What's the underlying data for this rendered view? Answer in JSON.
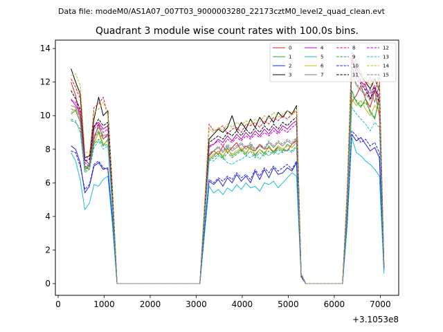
{
  "figure": {
    "suptitle": "Data file: modeM0/AS1A07_007T03_9000003280_22173cztM0_level2_quad_clean.evt",
    "axes_title": "Quadrant 3 module wise count rates with 100.0s bins.",
    "x_offset_label": "+3.1053e8"
  },
  "chart_data": {
    "type": "line",
    "title": "Quadrant 3 module wise count rates with 100.0s bins.",
    "xlabel": "",
    "ylabel": "",
    "x_offset": "+3.1053e8",
    "xlim": [
      -60,
      7400
    ],
    "ylim": [
      -0.7,
      14.5
    ],
    "xticks": [
      0,
      1000,
      2000,
      3000,
      4000,
      5000,
      6000,
      7000
    ],
    "yticks": [
      0,
      2,
      4,
      6,
      8,
      10,
      12,
      14
    ],
    "xtick_labels": [
      "0",
      "1000",
      "2000",
      "3000",
      "4000",
      "5000",
      "6000",
      "7000"
    ],
    "ytick_labels": [
      "0",
      "2",
      "4",
      "6",
      "8",
      "10",
      "12",
      "14"
    ],
    "grid": false,
    "legend_position": "top-right",
    "legend_columns": 4,
    "x": [
      280,
      380,
      480,
      580,
      680,
      780,
      880,
      980,
      1080,
      1180,
      1280,
      1380,
      1480,
      1580,
      1680,
      1780,
      1880,
      1980,
      2080,
      2180,
      2280,
      2380,
      2480,
      2580,
      2680,
      2780,
      2880,
      2980,
      3080,
      3180,
      3280,
      3380,
      3480,
      3580,
      3680,
      3780,
      3880,
      3980,
      4080,
      4180,
      4280,
      4380,
      4480,
      4580,
      4680,
      4780,
      4880,
      4980,
      5080,
      5180,
      5280,
      5380,
      5480,
      5580,
      5680,
      5780,
      5880,
      5980,
      6080,
      6180,
      6280,
      6380,
      6480,
      6580,
      6680,
      6780,
      6880,
      6980,
      7080
    ],
    "series": [
      {
        "name": "0",
        "color": "#e31a1c",
        "dash": "solid",
        "values": [
          12.0,
          11.2,
          9.8,
          7.0,
          6.8,
          8.6,
          9.5,
          8.6,
          8.9,
          5.0,
          0,
          0,
          0,
          0,
          0,
          0,
          0,
          0,
          0,
          0,
          0,
          0,
          0,
          0,
          0,
          0,
          0,
          0,
          0,
          4.0,
          7.6,
          7.9,
          7.7,
          8.2,
          7.8,
          8.1,
          8.4,
          7.9,
          8.2,
          8.0,
          7.9,
          8.3,
          8.0,
          8.1,
          7.8,
          8.2,
          8.0,
          7.9,
          8.3,
          8.5,
          0.5,
          0,
          0,
          0,
          0,
          0,
          0,
          0,
          0,
          0,
          4.5,
          10.8,
          11.2,
          11.8,
          11.0,
          10.5,
          11.5,
          10.0,
          0.9
        ]
      },
      {
        "name": "1",
        "color": "#2ca02c",
        "dash": "solid",
        "values": [
          10.1,
          10.3,
          9.6,
          6.8,
          7.0,
          8.4,
          9.0,
          8.2,
          8.6,
          4.8,
          0,
          0,
          0,
          0,
          0,
          0,
          0,
          0,
          0,
          0,
          0,
          0,
          0,
          0,
          0,
          0,
          0,
          0,
          0,
          3.9,
          7.4,
          7.6,
          7.9,
          7.5,
          8.1,
          7.6,
          7.8,
          8.0,
          7.7,
          8.2,
          7.6,
          8.0,
          7.7,
          8.2,
          7.8,
          8.1,
          7.9,
          8.3,
          8.1,
          8.4,
          0.5,
          0,
          0,
          0,
          0,
          0,
          0,
          0,
          0,
          0,
          4.3,
          11.5,
          10.8,
          10.5,
          11.0,
          10.2,
          9.8,
          11.2,
          0.9
        ]
      },
      {
        "name": "2",
        "color": "#1f1fe0",
        "dash": "solid",
        "values": [
          8.2,
          8.0,
          7.2,
          5.4,
          5.8,
          7.0,
          7.2,
          6.8,
          6.9,
          3.8,
          0,
          0,
          0,
          0,
          0,
          0,
          0,
          0,
          0,
          0,
          0,
          0,
          0,
          0,
          0,
          0,
          0,
          0,
          0,
          3.1,
          6.1,
          5.9,
          6.2,
          5.8,
          6.3,
          6.0,
          6.5,
          6.1,
          6.4,
          6.0,
          6.7,
          6.2,
          6.8,
          6.3,
          6.9,
          6.5,
          6.6,
          6.9,
          6.7,
          7.2,
          0.4,
          0,
          0,
          0,
          0,
          0,
          0,
          0,
          0,
          0,
          3.6,
          8.9,
          8.5,
          8.7,
          8.3,
          7.9,
          8.1,
          7.5,
          0.8
        ]
      },
      {
        "name": "3",
        "color": "#000000",
        "dash": "solid",
        "values": [
          12.8,
          12.0,
          11.3,
          7.5,
          7.6,
          9.8,
          11.1,
          10.0,
          10.3,
          5.6,
          0,
          0,
          0,
          0,
          0,
          0,
          0,
          0,
          0,
          0,
          0,
          0,
          0,
          0,
          0,
          0,
          0,
          0,
          0,
          4.4,
          8.6,
          8.9,
          9.2,
          9.0,
          9.3,
          10.0,
          9.1,
          9.6,
          9.2,
          9.8,
          9.3,
          9.9,
          9.5,
          10.0,
          9.6,
          10.2,
          9.9,
          10.3,
          10.1,
          10.6,
          0.6,
          0,
          0,
          0,
          0,
          0,
          0,
          0,
          0,
          0,
          5.3,
          13.2,
          12.8,
          12.4,
          12.0,
          11.6,
          12.2,
          11.5,
          1.1
        ]
      },
      {
        "name": "4",
        "color": "#c000c0",
        "dash": "solid",
        "values": [
          11.0,
          10.6,
          10.2,
          7.4,
          7.1,
          9.4,
          9.6,
          9.2,
          9.4,
          5.1,
          0,
          0,
          0,
          0,
          0,
          0,
          0,
          0,
          0,
          0,
          0,
          0,
          0,
          0,
          0,
          0,
          0,
          0,
          0,
          4.2,
          8.2,
          8.3,
          8.6,
          8.4,
          8.8,
          8.5,
          8.9,
          8.6,
          9.0,
          8.7,
          9.1,
          8.8,
          9.2,
          8.9,
          9.3,
          9.0,
          9.4,
          9.2,
          9.5,
          9.7,
          0.5,
          0,
          0,
          0,
          0,
          0,
          0,
          0,
          0,
          0,
          5.0,
          13.5,
          12.5,
          12.0,
          11.8,
          11.0,
          11.5,
          11.2,
          1.0
        ]
      },
      {
        "name": "5",
        "color": "#17becf",
        "dash": "solid",
        "values": [
          7.8,
          7.3,
          6.2,
          4.4,
          4.8,
          5.9,
          5.8,
          6.2,
          6.4,
          3.5,
          0,
          0,
          0,
          0,
          0,
          0,
          0,
          0,
          0,
          0,
          0,
          0,
          0,
          0,
          0,
          0,
          0,
          0,
          0,
          2.9,
          5.8,
          5.4,
          5.6,
          5.3,
          5.7,
          5.5,
          5.9,
          5.6,
          6.0,
          5.7,
          5.8,
          5.5,
          6.0,
          5.9,
          6.1,
          5.7,
          6.0,
          6.3,
          6.6,
          6.4,
          0.4,
          0,
          0,
          0,
          0,
          0,
          0,
          0,
          0,
          0,
          3.4,
          8.7,
          7.8,
          7.6,
          7.3,
          7.1,
          6.8,
          6.4,
          0.6
        ]
      },
      {
        "name": "6",
        "color": "#bcbd22",
        "dash": "solid",
        "values": [
          10.2,
          10.4,
          9.6,
          6.7,
          6.8,
          8.3,
          9.1,
          8.3,
          8.5,
          4.7,
          0,
          0,
          0,
          0,
          0,
          0,
          0,
          0,
          0,
          0,
          0,
          0,
          0,
          0,
          0,
          0,
          0,
          0,
          0,
          3.9,
          7.5,
          7.7,
          7.9,
          7.6,
          8.0,
          7.7,
          7.9,
          8.1,
          7.8,
          8.1,
          7.7,
          8.0,
          7.8,
          8.1,
          7.9,
          8.2,
          8.0,
          8.2,
          8.1,
          8.4,
          0.5,
          0,
          0,
          0,
          0,
          0,
          0,
          0,
          0,
          0,
          4.4,
          11.0,
          10.6,
          10.9,
          10.4,
          10.0,
          10.6,
          10.3,
          0.9
        ]
      },
      {
        "name": "7",
        "color": "#7f7f7f",
        "dash": "solid",
        "values": [
          10.6,
          10.5,
          9.9,
          6.9,
          7.1,
          8.8,
          9.3,
          8.8,
          8.9,
          4.9,
          0,
          0,
          0,
          0,
          0,
          0,
          0,
          0,
          0,
          0,
          0,
          0,
          0,
          0,
          0,
          0,
          0,
          0,
          0,
          4.0,
          7.7,
          7.9,
          8.1,
          7.8,
          8.2,
          7.9,
          8.1,
          8.3,
          8.0,
          8.3,
          7.9,
          8.2,
          8.0,
          8.4,
          8.1,
          8.4,
          8.2,
          8.5,
          8.3,
          8.6,
          0.5,
          0,
          0,
          0,
          0,
          0,
          0,
          0,
          0,
          0,
          4.6,
          12.6,
          11.8,
          11.5,
          11.2,
          11.6,
          10.8,
          11.9,
          1.0
        ]
      },
      {
        "name": "8",
        "color": "#e31a1c",
        "dash": "dashed",
        "values": [
          12.2,
          11.7,
          11.0,
          7.6,
          7.4,
          10.5,
          10.7,
          11.1,
          10.0,
          5.6,
          0,
          0,
          0,
          0,
          0,
          0,
          0,
          0,
          0,
          0,
          0,
          0,
          0,
          0,
          0,
          0,
          0,
          0,
          0,
          4.7,
          9.5,
          9.1,
          9.2,
          9.4,
          8.9,
          9.2,
          9.3,
          9.0,
          9.5,
          9.4,
          9.6,
          9.3,
          9.7,
          9.5,
          9.9,
          9.7,
          10.0,
          9.8,
          10.1,
          10.3,
          0.6,
          0,
          0,
          0,
          0,
          0,
          0,
          0,
          0,
          0,
          5.6,
          13.8,
          13.2,
          12.5,
          11.8,
          12.3,
          11.4,
          12.4,
          1.1
        ]
      },
      {
        "name": "9",
        "color": "#2ca02c",
        "dash": "dashed",
        "values": [
          9.7,
          9.6,
          9.2,
          6.8,
          6.9,
          8.3,
          8.6,
          8.2,
          8.3,
          4.6,
          0,
          0,
          0,
          0,
          0,
          0,
          0,
          0,
          0,
          0,
          0,
          0,
          0,
          0,
          0,
          0,
          0,
          0,
          0,
          3.8,
          7.3,
          7.5,
          7.7,
          7.4,
          7.8,
          7.5,
          7.7,
          7.9,
          7.6,
          7.9,
          7.5,
          7.8,
          7.6,
          7.9,
          7.7,
          8.0,
          7.8,
          8.0,
          7.9,
          8.2,
          0.5,
          0,
          0,
          0,
          0,
          0,
          0,
          0,
          0,
          0,
          4.3,
          11.2,
          10.9,
          10.6,
          10.8,
          10.3,
          9.9,
          10.9,
          0.9
        ]
      },
      {
        "name": "10",
        "color": "#1f1fe0",
        "dash": "dashed",
        "values": [
          7.9,
          7.8,
          7.0,
          5.6,
          5.9,
          7.1,
          7.3,
          6.9,
          6.8,
          3.9,
          0,
          0,
          0,
          0,
          0,
          0,
          0,
          0,
          0,
          0,
          0,
          0,
          0,
          0,
          0,
          0,
          0,
          0,
          0,
          3.2,
          6.2,
          6.0,
          6.3,
          6.1,
          6.4,
          6.2,
          6.6,
          6.3,
          6.5,
          6.2,
          6.8,
          6.4,
          6.9,
          6.6,
          7.0,
          6.7,
          6.9,
          7.1,
          6.8,
          7.3,
          0.4,
          0,
          0,
          0,
          0,
          0,
          0,
          0,
          0,
          0,
          3.7,
          9.1,
          8.8,
          8.4,
          8.6,
          8.2,
          8.4,
          7.8,
          0.8
        ]
      },
      {
        "name": "11",
        "color": "#000000",
        "dash": "dashed",
        "values": [
          11.5,
          11.0,
          10.4,
          7.3,
          7.4,
          9.3,
          9.8,
          9.4,
          9.6,
          5.3,
          0,
          0,
          0,
          0,
          0,
          0,
          0,
          0,
          0,
          0,
          0,
          0,
          0,
          0,
          0,
          0,
          0,
          0,
          0,
          4.3,
          8.4,
          8.6,
          8.8,
          8.6,
          9.0,
          8.8,
          9.1,
          8.8,
          9.2,
          8.9,
          9.3,
          9.0,
          9.4,
          9.1,
          9.5,
          9.2,
          9.6,
          9.4,
          9.7,
          9.9,
          0.5,
          0,
          0,
          0,
          0,
          0,
          0,
          0,
          0,
          0,
          5.1,
          12.9,
          12.2,
          11.9,
          11.5,
          11.0,
          11.7,
          10.8,
          1.0
        ]
      },
      {
        "name": "12",
        "color": "#c000c0",
        "dash": "dashed",
        "values": [
          10.9,
          10.8,
          10.3,
          7.2,
          7.0,
          9.2,
          9.5,
          9.0,
          9.2,
          5.0,
          0,
          0,
          0,
          0,
          0,
          0,
          0,
          0,
          0,
          0,
          0,
          0,
          0,
          0,
          0,
          0,
          0,
          0,
          0,
          4.1,
          8.1,
          8.3,
          8.5,
          8.2,
          8.6,
          8.4,
          8.7,
          8.5,
          8.8,
          8.6,
          8.9,
          8.7,
          9.0,
          8.8,
          9.1,
          8.9,
          9.2,
          9.0,
          9.3,
          9.5,
          0.5,
          0,
          0,
          0,
          0,
          0,
          0,
          0,
          0,
          0,
          4.9,
          13.3,
          12.6,
          12.1,
          11.6,
          11.3,
          11.8,
          11.0,
          1.0
        ]
      },
      {
        "name": "13",
        "color": "#17becf",
        "dash": "dashed",
        "values": [
          9.8,
          9.7,
          9.0,
          6.6,
          6.8,
          8.1,
          8.5,
          8.0,
          8.2,
          4.5,
          0,
          0,
          0,
          0,
          0,
          0,
          0,
          0,
          0,
          0,
          0,
          0,
          0,
          0,
          0,
          0,
          0,
          0,
          0,
          3.7,
          7.4,
          7.3,
          7.6,
          7.5,
          7.2,
          7.1,
          7.3,
          7.4,
          7.6,
          7.5,
          7.7,
          7.4,
          7.8,
          7.6,
          7.9,
          7.7,
          7.9,
          8.0,
          7.8,
          8.1,
          0.5,
          0,
          0,
          0,
          0,
          0,
          0,
          0,
          0,
          0,
          4.2,
          10.5,
          10.1,
          9.8,
          9.5,
          9.1,
          9.6,
          9.3,
          0.8
        ]
      },
      {
        "name": "14",
        "color": "#bcbd22",
        "dash": "dashed",
        "values": [
          12.4,
          12.5,
          11.8,
          7.9,
          7.7,
          10.2,
          10.4,
          10.8,
          10.1,
          5.7,
          0,
          0,
          0,
          0,
          0,
          0,
          0,
          0,
          0,
          0,
          0,
          0,
          0,
          0,
          0,
          0,
          0,
          0,
          0,
          4.6,
          9.2,
          9.0,
          9.3,
          9.1,
          9.5,
          9.3,
          9.6,
          9.4,
          9.7,
          9.5,
          9.8,
          9.6,
          10.0,
          9.8,
          10.2,
          9.9,
          10.1,
          10.3,
          10.0,
          10.5,
          0.6,
          0,
          0,
          0,
          0,
          0,
          0,
          0,
          0,
          0,
          5.4,
          13.6,
          13.0,
          12.6,
          12.2,
          11.8,
          12.1,
          11.6,
          1.1
        ]
      },
      {
        "name": "15",
        "color": "#7f7f7f",
        "dash": "dashed",
        "values": [
          10.4,
          10.3,
          9.7,
          6.9,
          7.0,
          8.7,
          9.1,
          8.6,
          8.8,
          4.8,
          0,
          0,
          0,
          0,
          0,
          0,
          0,
          0,
          0,
          0,
          0,
          0,
          0,
          0,
          0,
          0,
          0,
          0,
          0,
          4.0,
          7.8,
          7.9,
          8.2,
          7.9,
          8.3,
          8.0,
          8.2,
          8.4,
          8.1,
          8.4,
          8.0,
          8.3,
          8.1,
          8.5,
          8.2,
          8.5,
          8.3,
          8.6,
          8.4,
          8.7,
          0.5,
          0,
          0,
          0,
          0,
          0,
          0,
          0,
          0,
          0,
          4.7,
          12.4,
          11.9,
          11.6,
          11.3,
          10.9,
          11.4,
          10.7,
          1.0
        ]
      }
    ]
  }
}
